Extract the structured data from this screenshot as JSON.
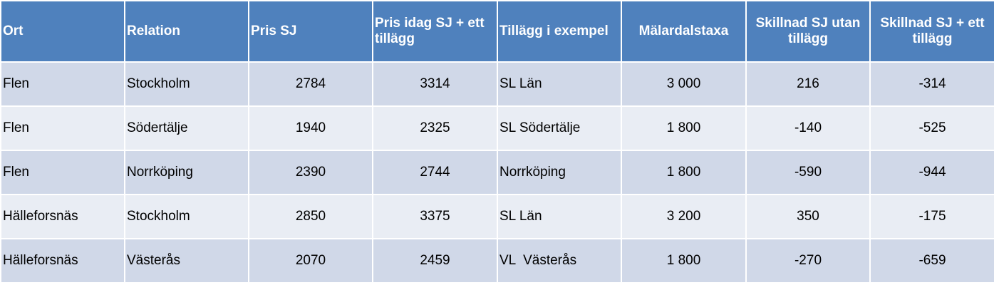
{
  "table": {
    "header": [
      "Ort",
      "Relation",
      "Pris SJ",
      "Pris idag SJ + ett tillägg",
      "Tillägg i exempel",
      "Mälardalstaxa",
      "Skillnad SJ utan tillägg",
      "Skillnad SJ + ett tillägg"
    ],
    "rows": [
      [
        "Flen",
        "Stockholm",
        "2784",
        "3314",
        "SL Län",
        "3 000",
        "216",
        "-314"
      ],
      [
        "Flen",
        "Södertälje",
        "1940",
        "2325",
        "SL Södertälje",
        "1 800",
        "-140",
        "-525"
      ],
      [
        "Flen",
        "Norrköping",
        "2390",
        "2744",
        "Norrköping",
        "1 800",
        "-590",
        "-944"
      ],
      [
        "Hälleforsnäs",
        "Stockholm",
        "2850",
        "3375",
        "SL Län",
        "3 200",
        "350",
        "-175"
      ],
      [
        "Hälleforsnäs",
        "Västerås",
        "2070",
        "2459",
        "VL  Västerås",
        "1 800",
        "-270",
        "-659"
      ]
    ]
  }
}
